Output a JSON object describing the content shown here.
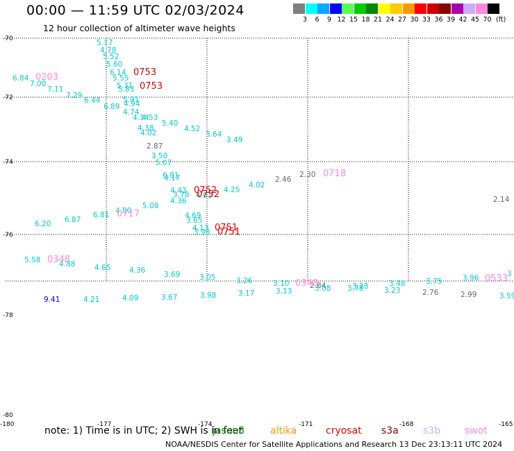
{
  "title": "00:00 — 11:59 UTC 02/03/2024",
  "subtitle": "12 hour collection of altimeter wave heights",
  "colorbar": {
    "colors": [
      "#7f7f7f",
      "#00ffff",
      "#00aaff",
      "#0000ff",
      "#55ff55",
      "#00cc00",
      "#008800",
      "#ffff00",
      "#ffcc00",
      "#ff9900",
      "#ff0000",
      "#cc0000",
      "#880000",
      "#aa00aa",
      "#ccaaff",
      "#ff88dd",
      "#000000"
    ],
    "labels": [
      "3",
      "6",
      "9",
      "12",
      "15",
      "18",
      "21",
      "24",
      "27",
      "30",
      "33",
      "36",
      "39",
      "42",
      "45",
      "70"
    ],
    "unit": "(ft)"
  },
  "lat_labels": [
    "-70",
    "-72",
    "-74",
    "-76",
    "-78",
    "-80"
  ],
  "lon_labels": [
    "-180",
    "-177",
    "-174",
    "-171",
    "-168",
    "-165"
  ],
  "observations": [
    {
      "t": "5.17",
      "c": "#00cccc"
    },
    {
      "t": "4.78",
      "c": "#00cccc"
    },
    {
      "t": "5.52",
      "c": "#00cccc"
    },
    {
      "t": "5.60",
      "c": "#00cccc"
    },
    {
      "t": "6.14",
      "c": "#00cccc"
    },
    {
      "t": "5.55",
      "c": "#00cccc"
    },
    {
      "t": "6.84",
      "c": "#00cccc"
    },
    {
      "t": "7.00",
      "c": "#00cccc"
    },
    {
      "t": "7.11",
      "c": "#00cccc"
    },
    {
      "t": "5.31",
      "c": "#00cccc"
    },
    {
      "t": "5.83",
      "c": "#00cccc"
    },
    {
      "t": "7.29",
      "c": "#00cccc"
    },
    {
      "t": "6.44",
      "c": "#00cccc"
    },
    {
      "t": "5.91",
      "c": "#00cccc"
    },
    {
      "t": "4.94",
      "c": "#00cccc"
    },
    {
      "t": "6.89",
      "c": "#00cccc"
    },
    {
      "t": "4.74",
      "c": "#00cccc"
    },
    {
      "t": "4.53",
      "c": "#00cccc"
    },
    {
      "t": "4.34",
      "c": "#00cccc"
    },
    {
      "t": "5.40",
      "c": "#00cccc"
    },
    {
      "t": "4.38",
      "c": "#00cccc"
    },
    {
      "t": "4.52",
      "c": "#00cccc"
    },
    {
      "t": "4.02",
      "c": "#00cccc"
    },
    {
      "t": "3.64",
      "c": "#00cccc"
    },
    {
      "t": "3.49",
      "c": "#00cccc"
    },
    {
      "t": "2.87",
      "c": "#666666"
    },
    {
      "t": "3.50",
      "c": "#00cccc"
    },
    {
      "t": "5.07",
      "c": "#00cccc"
    },
    {
      "t": "6.01",
      "c": "#00cccc"
    },
    {
      "t": "4.17",
      "c": "#00cccc"
    },
    {
      "t": "2.30",
      "c": "#666666"
    },
    {
      "t": "2.46",
      "c": "#666666"
    },
    {
      "t": "4.02",
      "c": "#00cccc"
    },
    {
      "t": "4.43",
      "c": "#00cccc"
    },
    {
      "t": "4.25",
      "c": "#00cccc"
    },
    {
      "t": "3.78",
      "c": "#00cccc"
    },
    {
      "t": "4.36",
      "c": "#00cccc"
    },
    {
      "t": "4.03",
      "c": "#00cccc"
    },
    {
      "t": "2.14",
      "c": "#666666"
    },
    {
      "t": "5.08",
      "c": "#00cccc"
    },
    {
      "t": "4.80",
      "c": "#00cccc"
    },
    {
      "t": "6.81",
      "c": "#00cccc"
    },
    {
      "t": "4.69",
      "c": "#00cccc"
    },
    {
      "t": "6.87",
      "c": "#00cccc"
    },
    {
      "t": "3.65",
      "c": "#00cccc"
    },
    {
      "t": "6.20",
      "c": "#00cccc"
    },
    {
      "t": "4.13",
      "c": "#00cccc"
    },
    {
      "t": "3.98",
      "c": "#00cccc"
    },
    {
      "t": "5.58",
      "c": "#00cccc"
    },
    {
      "t": "4.88",
      "c": "#00cccc"
    },
    {
      "t": "4.65",
      "c": "#00cccc"
    },
    {
      "t": "4.36",
      "c": "#00cccc"
    },
    {
      "t": "3.69",
      "c": "#00cccc"
    },
    {
      "t": "3.05",
      "c": "#00cccc"
    },
    {
      "t": "3.26",
      "c": "#00cccc"
    },
    {
      "t": "3.10",
      "c": "#00cccc"
    },
    {
      "t": "2.84",
      "c": "#666666"
    },
    {
      "t": "3.08",
      "c": "#00cccc"
    },
    {
      "t": "3.28",
      "c": "#00cccc"
    },
    {
      "t": "3.78",
      "c": "#00cccc"
    },
    {
      "t": "3.48",
      "c": "#00cccc"
    },
    {
      "t": "3.75",
      "c": "#00cccc"
    },
    {
      "t": "3.96",
      "c": "#00cccc"
    },
    {
      "t": "3",
      "c": "#00cccc"
    },
    {
      "t": "9.41",
      "c": "#0000cc"
    },
    {
      "t": "4.21",
      "c": "#00cccc"
    },
    {
      "t": "4.09",
      "c": "#00cccc"
    },
    {
      "t": "3.67",
      "c": "#00cccc"
    },
    {
      "t": "3.98",
      "c": "#00cccc"
    },
    {
      "t": "3.17",
      "c": "#00cccc"
    },
    {
      "t": "3.13",
      "c": "#00cccc"
    },
    {
      "t": "3.23",
      "c": "#00cccc"
    },
    {
      "t": "2.76",
      "c": "#666666"
    },
    {
      "t": "2.99",
      "c": "#666666"
    },
    {
      "t": "3.59",
      "c": "#00cccc"
    }
  ],
  "pass_times": [
    {
      "t": "0753",
      "c": "#dd0000"
    },
    {
      "t": "0753",
      "c": "#dd0000"
    },
    {
      "t": "0203",
      "c": "#ff88dd"
    },
    {
      "t": "0718",
      "c": "#ff88dd"
    },
    {
      "t": "0752",
      "c": "#dd0000"
    },
    {
      "t": "0752",
      "c": "#dd0000"
    },
    {
      "t": "0717",
      "c": "#ff88dd"
    },
    {
      "t": "0751",
      "c": "#dd0000"
    },
    {
      "t": "0751",
      "c": "#dd0000"
    },
    {
      "t": "0348",
      "c": "#ff88dd"
    },
    {
      "t": "0348",
      "c": "#ff88dd"
    },
    {
      "t": "0533",
      "c": "#ff88dd"
    }
  ],
  "note": "note:  1) Time is in UTC;  2) SWH is in feet",
  "satellites": [
    {
      "name": "jason3",
      "color": "#008800"
    },
    {
      "name": "altika",
      "color": "#ff9900"
    },
    {
      "name": "cryosat",
      "color": "#dd0000"
    },
    {
      "name": "s3a",
      "color": "#880000"
    },
    {
      "name": "s3b",
      "color": "#ccaaff"
    },
    {
      "name": "swot",
      "color": "#ff88dd"
    }
  ],
  "credit": "NOAA/NESDIS Center for Satellite Applications and Research    13 Dec 23:13:11 UTC 2024"
}
